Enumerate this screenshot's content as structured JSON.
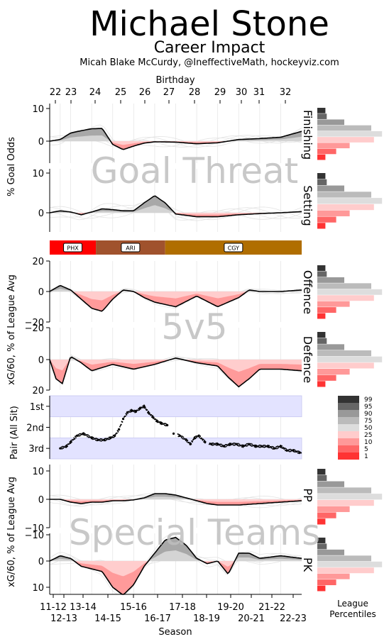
{
  "header": {
    "title": "Michael Stone",
    "subtitle": "Career Impact",
    "credit": "Micah Blake McCurdy, @IneffectiveMath, hockeyviz.com"
  },
  "top_axis": {
    "label": "Birthday",
    "ticks": [
      "22",
      "23",
      "24",
      "25",
      "26",
      "27",
      "28",
      "29",
      "30",
      "31",
      "32"
    ]
  },
  "bottom_axis": {
    "label": "Season",
    "ticks_row1": [
      "11-12",
      "13-14",
      "15-16",
      "17-18",
      "19-20",
      "21-22"
    ],
    "ticks_row2": [
      "12-13",
      "14-15",
      "16-17",
      "18-19",
      "20-21",
      "22-23"
    ]
  },
  "watermarks": {
    "goal_threat": "Goal Threat",
    "fivev5": "5v5",
    "special_teams": "Special Teams"
  },
  "ylabels": {
    "goal_odds": "% Goal Odds",
    "xg_5v5": "xG/60, % of League Avg",
    "pair": "Pair (All Sit)",
    "xg_st": "xG/60, % of League Avg"
  },
  "teams": [
    {
      "label": "PHX",
      "color": "#ff0000",
      "start": 0.0,
      "end": 2.2
    },
    {
      "label": "ARI",
      "color": "#a0522d",
      "start": 2.2,
      "end": 5.5
    },
    {
      "label": "CGY",
      "color": "#b06e00",
      "start": 5.5,
      "end": 12.0
    }
  ],
  "pair_ticks": [
    "1st",
    "2nd",
    "3rd"
  ],
  "legend": {
    "title": "League Percentiles",
    "levels": [
      "99",
      "95",
      "90",
      "75",
      "50",
      "25",
      "10",
      "5",
      "1"
    ],
    "colors": [
      "#333333",
      "#666666",
      "#999999",
      "#bbbbbb",
      "#dddddd",
      "#ffcccc",
      "#ff9999",
      "#ff6666",
      "#ff3333"
    ]
  },
  "chart_data": [
    {
      "type": "area",
      "name": "Finishing",
      "label": "Finishing",
      "x": [
        0,
        0.5,
        1,
        1.5,
        2,
        2.5,
        3,
        3.5,
        4,
        4.5,
        5,
        6,
        7,
        8,
        9,
        10,
        11,
        12
      ],
      "values": [
        0,
        0.5,
        2.5,
        3.2,
        3.8,
        3.9,
        -1,
        -2.6,
        -1.5,
        -0.6,
        -0.2,
        -0.3,
        -0.8,
        -0.5,
        0.5,
        0.8,
        1.2,
        3
      ],
      "ylim": [
        -5,
        12
      ],
      "yticks": [
        "10",
        "0"
      ]
    },
    {
      "type": "area",
      "name": "Setting",
      "label": "Setting",
      "x": [
        0,
        0.5,
        1,
        1.5,
        2,
        2.5,
        3,
        3.5,
        4,
        4.5,
        5,
        5.5,
        6,
        7,
        8,
        9,
        10,
        11,
        12
      ],
      "values": [
        0,
        0.5,
        0.2,
        -0.5,
        0.2,
        1,
        0.8,
        0.5,
        0.5,
        2.5,
        4.3,
        2.5,
        -0.3,
        -1,
        -1,
        -0.5,
        -0.2,
        0,
        0.3
      ],
      "ylim": [
        -6,
        12
      ],
      "yticks": [
        "10",
        "0"
      ]
    },
    {
      "type": "area",
      "name": "Offence",
      "label": "Offence",
      "x": [
        0,
        0.5,
        1,
        1.5,
        2,
        2.5,
        3,
        3.5,
        4,
        4.5,
        5,
        6,
        7,
        8,
        9,
        9.5,
        10,
        11,
        12
      ],
      "values": [
        0,
        4,
        1,
        -5,
        -11,
        -13,
        -5,
        1,
        0,
        -4,
        -7,
        -10,
        -3,
        -10,
        -4,
        1,
        0,
        0,
        1
      ],
      "ylim": [
        -20,
        20
      ],
      "yticks": [
        "20",
        "0",
        "−20"
      ]
    },
    {
      "type": "area",
      "name": "Defence",
      "label": "Defence",
      "x": [
        0,
        0.3,
        0.6,
        1,
        1.5,
        2,
        3,
        4,
        5,
        6,
        7,
        8,
        8.5,
        9,
        9.5,
        10,
        11,
        12
      ],
      "values": [
        0,
        12,
        15,
        -2,
        2,
        7,
        3,
        6,
        3,
        -1,
        2,
        4,
        11,
        17,
        12,
        6,
        6,
        7
      ],
      "ylim": [
        -20,
        20
      ],
      "yticks": [
        "−20",
        "0",
        "20"
      ]
    },
    {
      "type": "scatter",
      "name": "Pair",
      "label": "Pair (All Sit)",
      "x": [
        0.5,
        0.8,
        1.0,
        1.3,
        1.6,
        2.0,
        2.3,
        2.6,
        2.9,
        3.1,
        3.3,
        3.5,
        3.7,
        3.9,
        4.1,
        4.3,
        4.5,
        4.7,
        4.9,
        5.1,
        5.3,
        5.6,
        5.9,
        6.2,
        6.5,
        6.7,
        6.9,
        7.1,
        7.4,
        7.7,
        8.0,
        8.3,
        8.6,
        8.9,
        9.2,
        9.5,
        9.8,
        10.1,
        10.4,
        10.7,
        11.0,
        11.3,
        11.6,
        11.9
      ],
      "values": [
        3.0,
        2.9,
        2.7,
        2.4,
        2.3,
        2.5,
        2.6,
        2.6,
        2.5,
        2.4,
        2.1,
        1.6,
        1.3,
        1.2,
        1.25,
        1.1,
        1.0,
        1.3,
        1.5,
        1.7,
        1.8,
        1.9,
        2.3,
        2.4,
        2.6,
        2.8,
        2.5,
        2.4,
        2.7,
        2.8,
        2.8,
        2.9,
        2.8,
        2.8,
        2.9,
        2.8,
        2.9,
        2.9,
        2.9,
        3.0,
        2.9,
        3.1,
        3.1,
        3.2
      ],
      "ylim": [
        0.5,
        3.5
      ],
      "bands": [
        [
          0.5,
          1.5
        ],
        [
          2.5,
          3.5
        ]
      ]
    },
    {
      "type": "area",
      "name": "PP",
      "label": "PP",
      "x": [
        0,
        0.5,
        1,
        1.5,
        2,
        2.5,
        3,
        3.5,
        4,
        4.5,
        5,
        5.5,
        6,
        6.5,
        7,
        7.5,
        8,
        9,
        10,
        11,
        12
      ],
      "values": [
        0,
        0,
        -1,
        -1.5,
        -1,
        -1,
        -0.5,
        -0.5,
        -0.2,
        0.5,
        2,
        2,
        1.5,
        0.5,
        -0.5,
        -1.5,
        -2,
        -2,
        -1.5,
        -1,
        -0.5
      ],
      "ylim": [
        -10,
        12
      ],
      "yticks": [
        "10",
        "0",
        "−10"
      ]
    },
    {
      "type": "area",
      "name": "PK",
      "label": "PK",
      "x": [
        0,
        0.5,
        1,
        1.5,
        2,
        2.5,
        3,
        3.5,
        4,
        4.5,
        5,
        5.5,
        6,
        6.5,
        7,
        7.5,
        8,
        8.5,
        9,
        9.5,
        10,
        11,
        12
      ],
      "values": [
        0,
        -2,
        -1,
        2,
        3,
        4,
        10,
        13,
        9,
        2,
        -3,
        -8,
        -9,
        -6,
        -1,
        1,
        0,
        5,
        -3,
        -3,
        -1,
        -2,
        -1
      ],
      "ylim": [
        -10,
        12
      ],
      "yticks": [
        "−10",
        "0",
        "10"
      ]
    }
  ]
}
